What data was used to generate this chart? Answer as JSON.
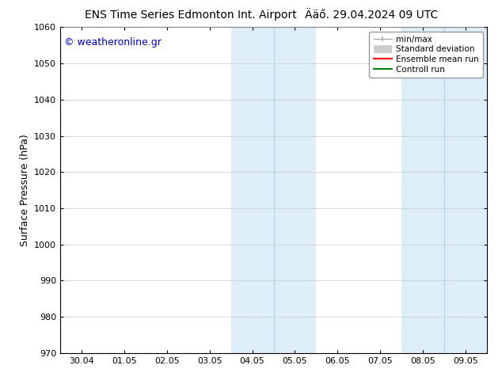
{
  "title_left": "ENS Time Series Edmonton Int. Airport",
  "title_right": "Ääő. 29.04.2024 09 UTC",
  "watermark": "© weatheronline.gr",
  "ylabel": "Surface Pressure (hPa)",
  "ylim": [
    970,
    1060
  ],
  "yticks": [
    970,
    980,
    990,
    1000,
    1010,
    1020,
    1030,
    1040,
    1050,
    1060
  ],
  "xtick_labels": [
    "30.04",
    "01.05",
    "02.05",
    "03.05",
    "04.05",
    "05.05",
    "06.05",
    "07.05",
    "08.05",
    "09.05"
  ],
  "xtick_positions": [
    0,
    1,
    2,
    3,
    4,
    5,
    6,
    7,
    8,
    9
  ],
  "xlim": [
    -0.5,
    9.5
  ],
  "shaded_regions": [
    {
      "x_start": 3.5,
      "x_end": 5.5,
      "color": "#ddeef8"
    },
    {
      "x_start": 7.5,
      "x_end": 9.5,
      "color": "#ddeef8"
    }
  ],
  "shaded_dividers": [
    4.5,
    8.5
  ],
  "divider_color": "#b8d4ea",
  "background_color": "#ffffff",
  "plot_bg_color": "#ffffff",
  "grid_color": "#c8c8c8",
  "watermark_color": "#0000cc",
  "legend_items": [
    {
      "label": "min/max",
      "color": "#aaaaaa",
      "linewidth": 1.0
    },
    {
      "label": "Standard deviation",
      "color": "#cccccc",
      "linewidth": 7
    },
    {
      "label": "Ensemble mean run",
      "color": "#ff0000",
      "linewidth": 1.5
    },
    {
      "label": "Controll run",
      "color": "#008000",
      "linewidth": 1.5
    }
  ],
  "border_color": "#000000",
  "tick_color": "#000000",
  "font_size_title": 10,
  "font_size_axis": 9,
  "font_size_ticks": 8,
  "font_size_legend": 7.5,
  "font_size_watermark": 9
}
